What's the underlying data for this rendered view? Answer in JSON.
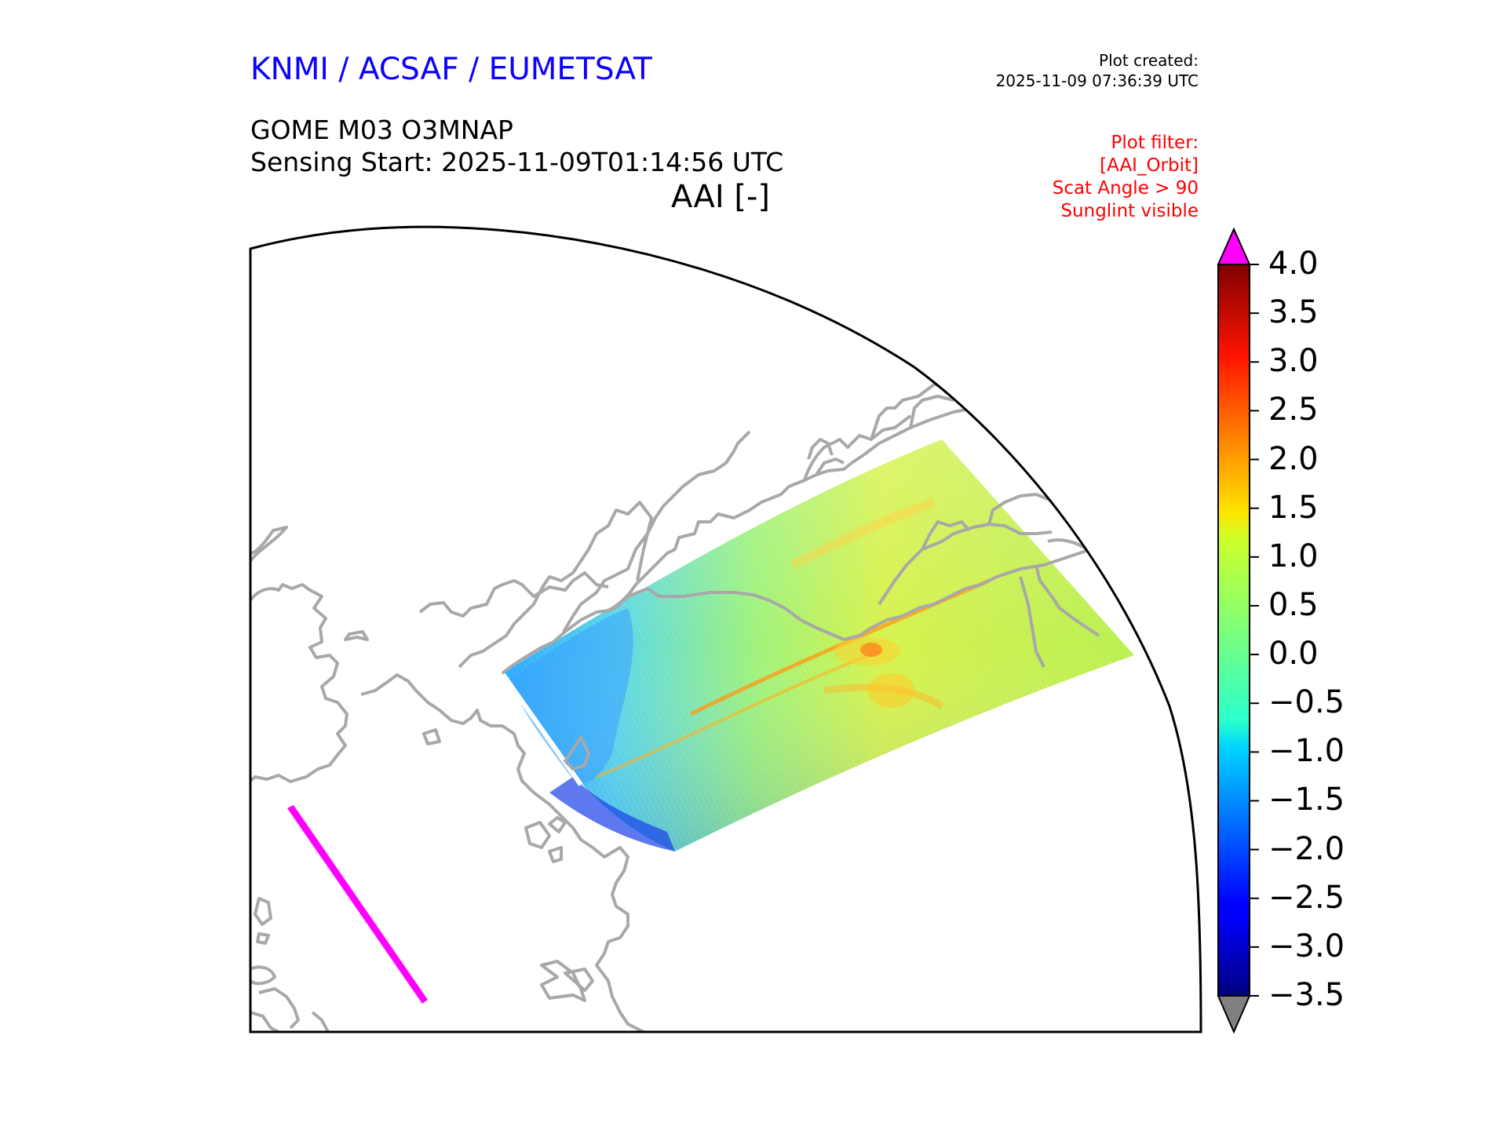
{
  "header": {
    "org": "KNMI / ACSAF / EUMETSAT",
    "created_label": "Plot created:",
    "created_time": "2025-11-09 07:36:39 UTC",
    "product": "GOME M03 O3MNAP",
    "sensing_start": "Sensing Start: 2025-11-09T01:14:56 UTC",
    "variable": "AAI [-]"
  },
  "filter": {
    "title": "Plot filter:",
    "lines": [
      "[AAI_Orbit]",
      "Scat Angle > 90",
      "Sunglint visible"
    ]
  },
  "colorbar": {
    "ticks": [
      "4.0",
      "3.5",
      "3.0",
      "2.5",
      "2.0",
      "1.5",
      "1.0",
      "0.5",
      "0.0",
      "−0.5",
      "−1.0",
      "−1.5",
      "−2.0",
      "−2.5",
      "−3.0",
      "−3.5"
    ],
    "range": [
      -3.5,
      4.0
    ],
    "over_color": "#ff00ff",
    "under_color": "#808080",
    "colormap": "jet"
  },
  "colors": {
    "title": "#0b00ff",
    "filter_text": "#ff0000",
    "coastline": "#a8a8a8",
    "swath_secondary": "#ff00ff"
  }
}
